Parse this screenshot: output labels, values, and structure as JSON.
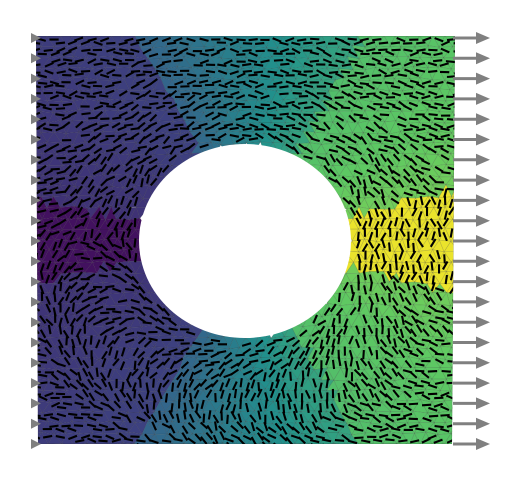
{
  "diagram": {
    "type": "finite-element-plate-with-hole",
    "colormap": "viridis",
    "colormap_stops": [
      "#440154",
      "#3b528b",
      "#21918c",
      "#5ec962",
      "#fde725"
    ],
    "hole_color": "#ffffff",
    "mesh_edge_color": "#2b2b2b",
    "glyph_color": "#000000",
    "load_arrow_color": "#808080",
    "boundary_conditions": {
      "left": "fixed-support-markers",
      "right": "traction-arrows"
    },
    "field_levels": {
      "left_notch_band": 0.05,
      "left_region": 0.2,
      "top_bottom_center": 0.45,
      "right_region": 0.7,
      "right_notch_band": 0.97
    }
  }
}
